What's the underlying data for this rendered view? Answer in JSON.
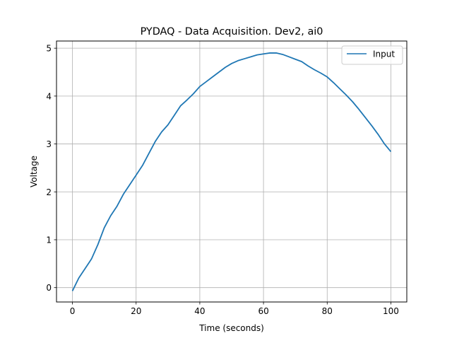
{
  "chart_data": {
    "type": "line",
    "title": "PYDAQ - Data Acquisition. Dev2, ai0",
    "xlabel": "Time (seconds)",
    "ylabel": "Voltage",
    "xlim": [
      -5,
      105
    ],
    "ylim": [
      -0.3,
      5.15
    ],
    "xticks": [
      0,
      20,
      40,
      60,
      80,
      100
    ],
    "yticks": [
      0,
      1,
      2,
      3,
      4,
      5
    ],
    "grid": true,
    "legend_position": "top-right",
    "series": [
      {
        "name": "Input",
        "color": "#1f77b4",
        "x": [
          0,
          2,
          4,
          6,
          8,
          10,
          12,
          14,
          16,
          18,
          20,
          22,
          24,
          26,
          28,
          30,
          32,
          34,
          36,
          38,
          40,
          42,
          44,
          46,
          48,
          50,
          52,
          54,
          56,
          58,
          60,
          62,
          64,
          66,
          68,
          70,
          72,
          74,
          76,
          78,
          80,
          82,
          84,
          86,
          88,
          90,
          92,
          94,
          96,
          98,
          100
        ],
        "y": [
          -0.07,
          0.2,
          0.4,
          0.6,
          0.9,
          1.25,
          1.5,
          1.7,
          1.95,
          2.15,
          2.35,
          2.55,
          2.8,
          3.05,
          3.25,
          3.4,
          3.6,
          3.8,
          3.92,
          4.05,
          4.2,
          4.3,
          4.4,
          4.5,
          4.6,
          4.68,
          4.74,
          4.78,
          4.82,
          4.86,
          4.88,
          4.9,
          4.9,
          4.87,
          4.82,
          4.77,
          4.72,
          4.63,
          4.55,
          4.48,
          4.4,
          4.28,
          4.15,
          4.02,
          3.88,
          3.72,
          3.55,
          3.38,
          3.2,
          3.0,
          2.84
        ]
      }
    ]
  }
}
